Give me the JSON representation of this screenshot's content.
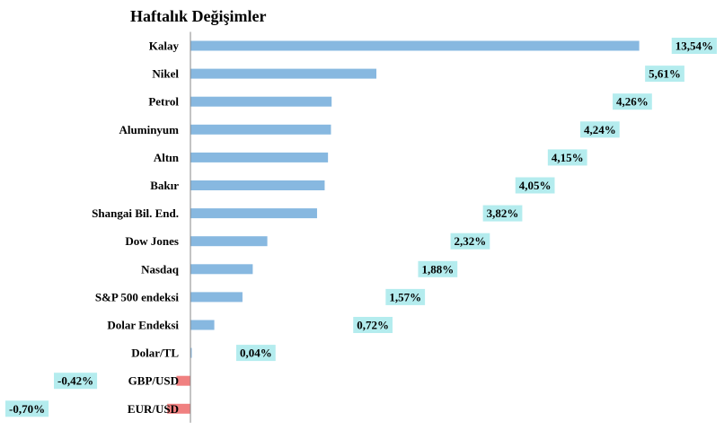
{
  "colors": {
    "positive_bar": "#87B8E0",
    "negative_bar": "#F08080",
    "label_background": "#B4ECEE",
    "axis_line": "#888888",
    "text": "#000000"
  },
  "chart_data": {
    "type": "bar",
    "orientation": "horizontal",
    "title": "Haftalık Değişimler",
    "xlabel": "",
    "ylabel": "",
    "grid": false,
    "legend": "none",
    "categories": [
      "Kalay",
      "Nikel",
      "Petrol",
      "Aluminyum",
      "Altın",
      "Bakır",
      "Shangai Bil. End.",
      "Dow Jones",
      "Nasdaq",
      "S&P 500 endeksi",
      "Dolar Endeksi",
      "Dolar/TL",
      "GBP/USD",
      "EUR/USD"
    ],
    "values": [
      13.54,
      5.61,
      4.26,
      4.24,
      4.15,
      4.05,
      3.82,
      2.32,
      1.88,
      1.57,
      0.72,
      0.04,
      -0.42,
      -0.7
    ],
    "value_labels": [
      "13,54%",
      "5,61%",
      "4,26%",
      "4,24%",
      "4,15%",
      "4,05%",
      "3,82%",
      "2,32%",
      "1,88%",
      "1,57%",
      "0,72%",
      "0,04%",
      "-0,42%",
      "-0,70%"
    ]
  }
}
